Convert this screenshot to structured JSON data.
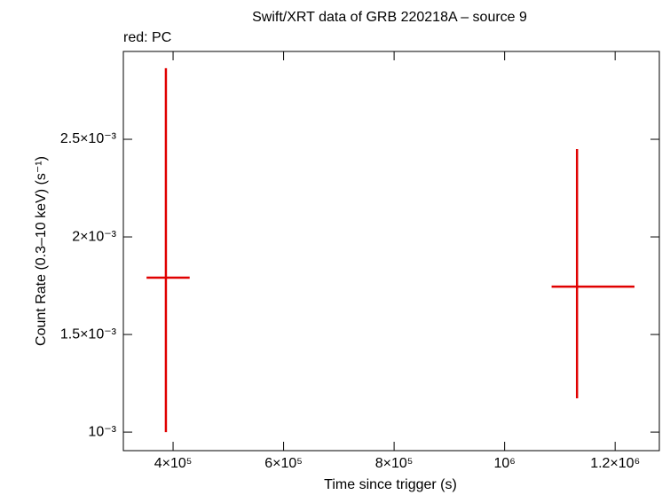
{
  "chart_data": {
    "type": "errorbar",
    "title": "Swift/XRT data of GRB 220218A – source 9",
    "subtitle": "red: PC",
    "x_label": "Time since trigger (s)",
    "y_label": "Count Rate (0.3–10 keV) (s⁻¹)",
    "xlim": [
      310000,
      1280000
    ],
    "ylim": [
      0.000905,
      0.00295
    ],
    "xticks": [
      {
        "value": 400000,
        "label": "4×10⁵"
      },
      {
        "value": 600000,
        "label": "6×10⁵"
      },
      {
        "value": 800000,
        "label": "8×10⁵"
      },
      {
        "value": 1000000,
        "label": "10⁶"
      },
      {
        "value": 1200000,
        "label": "1.2×10⁶"
      }
    ],
    "yticks": [
      {
        "value": 0.001,
        "label": "10⁻³"
      },
      {
        "value": 0.0015,
        "label": "1.5×10⁻³"
      },
      {
        "value": 0.002,
        "label": "2×10⁻³"
      },
      {
        "value": 0.0025,
        "label": "2.5×10⁻³"
      }
    ],
    "series": [
      {
        "color": "#e00000",
        "x": [
          387000,
          1131000
        ],
        "xerr_minus": [
          35000,
          46000
        ],
        "xerr_plus": [
          43000,
          104000
        ],
        "values": [
          0.001791,
          0.001745
        ],
        "yerr_minus": [
          0.000791,
          0.000572
        ],
        "yerr_plus": [
          0.001073,
          0.000705
        ]
      }
    ]
  }
}
